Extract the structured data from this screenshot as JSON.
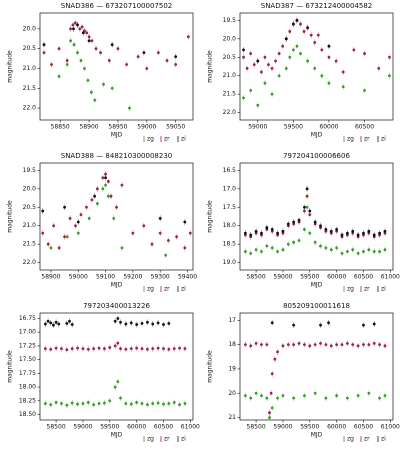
{
  "chart_data": [
    {
      "type": "scatter",
      "title": "SNAD386 — 673207100007502",
      "xlabel": "MJD",
      "ylabel": "magnitude",
      "legend": "below-right",
      "xlim": [
        58815,
        59080
      ],
      "xticks": [
        58850,
        58900,
        58950,
        59000,
        59050
      ],
      "ylim": [
        22.3,
        19.6
      ],
      "yticks": [
        {
          "value": 20,
          "label": "20.0"
        },
        20.5,
        {
          "value": 21,
          "label": "21.0"
        },
        21.5,
        {
          "value": 22,
          "label": "22.0"
        }
      ],
      "series": [
        {
          "name": "zg",
          "color": "#3a9a2a",
          "x": [
            58848,
            58862,
            58868,
            58874,
            58880,
            58886,
            58892,
            58898,
            58904,
            58910,
            58925,
            58940,
            58970
          ],
          "values": [
            21.2,
            20.9,
            20.3,
            20.4,
            20.6,
            20.8,
            21.0,
            21.3,
            21.6,
            21.8,
            21.4,
            21.5,
            22.0
          ]
        },
        {
          "name": "zr",
          "color": "#a3203f",
          "x": [
            58822,
            58835,
            58848,
            58862,
            58868,
            58872,
            58876,
            58880,
            58884,
            58888,
            58892,
            58896,
            58900,
            58905,
            58912,
            58920,
            58935,
            58950,
            58965,
            58985,
            59000,
            59020,
            59035,
            59050,
            59072
          ],
          "values": [
            20.6,
            20.9,
            20.5,
            20.8,
            20.0,
            19.9,
            19.85,
            19.9,
            20.0,
            19.95,
            20.05,
            20.1,
            20.2,
            20.3,
            20.5,
            20.6,
            20.8,
            20.5,
            20.9,
            20.7,
            21.0,
            20.6,
            20.8,
            20.9,
            20.2
          ]
        },
        {
          "name": "zi",
          "color": "#111111",
          "x": [
            58822,
            58873,
            58880,
            58890,
            58900,
            58940,
            58995,
            59050
          ],
          "values": [
            20.4,
            20.0,
            19.9,
            20.1,
            20.3,
            20.4,
            20.6,
            20.7
          ]
        }
      ]
    },
    {
      "type": "scatter",
      "title": "SNAD387 — 673212400004582",
      "xlabel": "MJD",
      "ylabel": "magnitude",
      "legend": "below-right",
      "xlim": [
        58750,
        60900
      ],
      "xticks": [
        59000,
        59500,
        60000,
        60500
      ],
      "ylim": [
        22.2,
        19.3
      ],
      "yticks": [
        19.5,
        {
          "value": 20,
          "label": "20.0"
        },
        20.5,
        {
          "value": 21,
          "label": "21.0"
        },
        21.5,
        {
          "value": 22,
          "label": "22.0"
        }
      ],
      "series": [
        {
          "name": "zg",
          "color": "#3a9a2a",
          "x": [
            58800,
            58900,
            59000,
            59100,
            59200,
            59300,
            59400,
            59450,
            59500,
            59550,
            59600,
            59700,
            59800,
            59900,
            60000,
            60200,
            60500,
            60850
          ],
          "values": [
            21.6,
            21.4,
            21.8,
            21.2,
            21.5,
            21.0,
            20.8,
            20.5,
            20.3,
            20.2,
            20.4,
            20.6,
            20.8,
            21.0,
            21.2,
            21.3,
            21.4,
            21.0
          ]
        },
        {
          "name": "zr",
          "color": "#a3203f",
          "x": [
            58800,
            58850,
            58900,
            58950,
            59000,
            59050,
            59100,
            59150,
            59200,
            59250,
            59300,
            59350,
            59400,
            59450,
            59500,
            59550,
            59600,
            59650,
            59700,
            59750,
            59800,
            59850,
            59900,
            60000,
            60100,
            60200,
            60350,
            60500,
            60700,
            60850
          ],
          "values": [
            20.5,
            20.8,
            20.4,
            20.7,
            20.6,
            20.9,
            20.5,
            20.7,
            20.8,
            20.6,
            20.4,
            20.2,
            20.0,
            19.8,
            19.6,
            19.5,
            19.6,
            19.8,
            19.7,
            19.9,
            20.1,
            19.9,
            20.3,
            20.5,
            20.6,
            20.9,
            20.3,
            20.4,
            20.8,
            20.5
          ]
        },
        {
          "name": "zi",
          "color": "#111111",
          "x": [
            58800,
            59000,
            59400,
            59500,
            59550,
            59700,
            60000
          ],
          "values": [
            20.3,
            20.6,
            20.0,
            19.6,
            19.5,
            19.7,
            20.2
          ]
        }
      ]
    },
    {
      "type": "scatter",
      "title": "SNAD388 — 848210300008230",
      "xlabel": "MJD",
      "ylabel": "magnitude",
      "legend": "below-right",
      "xlim": [
        58860,
        59420
      ],
      "xticks": [
        58900,
        59000,
        59100,
        59200,
        59300,
        59400
      ],
      "ylim": [
        22.2,
        19.3
      ],
      "yticks": [
        19.5,
        {
          "value": 20,
          "label": "20.0"
        },
        20.5,
        {
          "value": 21,
          "label": "21.0"
        },
        21.5,
        {
          "value": 22,
          "label": "22.0"
        }
      ],
      "series": [
        {
          "name": "zg",
          "color": "#3a9a2a",
          "x": [
            58900,
            58960,
            59000,
            59040,
            59070,
            59090,
            59100,
            59110,
            59130,
            59160,
            59320
          ],
          "values": [
            21.6,
            21.3,
            21.2,
            20.8,
            20.4,
            20.0,
            19.9,
            20.2,
            20.8,
            21.6,
            21.8
          ]
        },
        {
          "name": "zr",
          "color": "#a3203f",
          "x": [
            58870,
            58890,
            58910,
            58930,
            58950,
            58970,
            58990,
            59010,
            59030,
            59050,
            59070,
            59090,
            59100,
            59110,
            59120,
            59140,
            59160,
            59200,
            59240,
            59270,
            59300,
            59330,
            59360,
            59390,
            59410
          ],
          "values": [
            21.2,
            21.5,
            21.0,
            21.6,
            21.3,
            20.8,
            21.0,
            20.7,
            20.5,
            20.3,
            20.0,
            19.7,
            19.6,
            19.8,
            20.2,
            20.5,
            19.9,
            21.2,
            21.0,
            21.5,
            21.2,
            21.4,
            21.3,
            21.6,
            21.2
          ]
        },
        {
          "name": "zi",
          "color": "#111111",
          "x": [
            58870,
            58950,
            59000,
            59060,
            59100,
            59300,
            59390
          ],
          "values": [
            20.6,
            20.5,
            20.9,
            20.2,
            19.7,
            20.8,
            20.9
          ]
        }
      ]
    },
    {
      "type": "scatter",
      "title": "797204100006606",
      "xlabel": "MJD",
      "ylabel": "magnitude",
      "legend": "below-right",
      "xlim": [
        58200,
        61050
      ],
      "xticks": [
        58500,
        59000,
        59500,
        60000,
        60500,
        61000
      ],
      "ylim": [
        19.2,
        16.3
      ],
      "yticks": [
        16.5,
        {
          "value": 17,
          "label": "17.0"
        },
        17.5,
        {
          "value": 18,
          "label": "18.0"
        },
        18.5,
        {
          "value": 19,
          "label": "19.0"
        }
      ],
      "series": [
        {
          "name": "zg",
          "color": "#3a9a2a",
          "x": [
            58300,
            58400,
            58500,
            58600,
            58700,
            58800,
            58900,
            59000,
            59100,
            59200,
            59300,
            59400,
            59450,
            59500,
            59600,
            59700,
            59800,
            59900,
            60000,
            60100,
            60200,
            60300,
            60400,
            60500,
            60600,
            60700,
            60800,
            60900
          ],
          "values": [
            18.7,
            18.75,
            18.65,
            18.7,
            18.55,
            18.6,
            18.7,
            18.65,
            18.5,
            18.45,
            18.4,
            18.1,
            17.5,
            18.2,
            18.45,
            18.55,
            18.6,
            18.65,
            18.6,
            18.75,
            18.7,
            18.65,
            18.75,
            18.7,
            18.65,
            18.7,
            18.7,
            18.65
          ]
        },
        {
          "name": "zr",
          "color": "#a3203f",
          "x": [
            58300,
            58400,
            58500,
            58600,
            58700,
            58800,
            58900,
            59000,
            59100,
            59200,
            59300,
            59400,
            59450,
            59500,
            59600,
            59700,
            59800,
            59900,
            60000,
            60100,
            60200,
            60300,
            60400,
            60500,
            60600,
            60700,
            60800,
            60900
          ],
          "values": [
            18.25,
            18.3,
            18.2,
            18.25,
            18.1,
            18.15,
            18.25,
            18.2,
            18.0,
            17.95,
            17.9,
            17.6,
            17.2,
            17.7,
            17.95,
            18.05,
            18.15,
            18.2,
            18.15,
            18.3,
            18.25,
            18.2,
            18.3,
            18.25,
            18.2,
            18.3,
            18.25,
            18.2
          ]
        },
        {
          "name": "zi",
          "color": "#111111",
          "x": [
            58300,
            58400,
            58500,
            58600,
            58700,
            58800,
            58900,
            59000,
            59100,
            59200,
            59300,
            59400,
            59450,
            59500,
            59600,
            59700,
            59800,
            59900,
            60000,
            60100,
            60200,
            60300,
            60400,
            60500,
            60600,
            60700,
            60800,
            60900
          ],
          "values": [
            18.2,
            18.25,
            18.15,
            18.2,
            18.05,
            18.1,
            18.2,
            18.15,
            17.95,
            17.9,
            17.85,
            17.5,
            17.0,
            17.6,
            17.9,
            18.0,
            18.1,
            18.15,
            18.1,
            18.25,
            18.2,
            18.15,
            18.25,
            18.2,
            18.15,
            18.25,
            18.2,
            18.15
          ]
        }
      ]
    },
    {
      "type": "scatter",
      "title": "797203400013226",
      "xlabel": "MJD",
      "ylabel": "magnitude",
      "legend": "below-right",
      "xlim": [
        58200,
        61050
      ],
      "xticks": [
        58500,
        59000,
        59500,
        60000,
        60500,
        61000
      ],
      "ylim": [
        18.6,
        16.65
      ],
      "yticks": [
        16.75,
        {
          "value": 17,
          "label": "17.00"
        },
        17.25,
        {
          "value": 17.5,
          "label": "17.50"
        },
        17.75,
        {
          "value": 18,
          "label": "18.00"
        },
        18.25,
        {
          "value": 18.5,
          "label": "18.50"
        }
      ],
      "series": [
        {
          "name": "zg",
          "color": "#3a9a2a",
          "x": [
            58300,
            58400,
            58500,
            58600,
            58700,
            58800,
            58900,
            59000,
            59100,
            59200,
            59300,
            59400,
            59500,
            59600,
            59650,
            59700,
            59800,
            59900,
            60000,
            60100,
            60200,
            60300,
            60400,
            60500,
            60600,
            60700,
            60800,
            60900
          ],
          "values": [
            18.3,
            18.32,
            18.28,
            18.3,
            18.33,
            18.29,
            18.31,
            18.3,
            18.28,
            18.32,
            18.3,
            18.29,
            18.25,
            18.0,
            17.9,
            18.2,
            18.3,
            18.31,
            18.28,
            18.3,
            18.32,
            18.3,
            18.29,
            18.31,
            18.3,
            18.28,
            18.32,
            18.3
          ]
        },
        {
          "name": "zr",
          "color": "#a3203f",
          "x": [
            58300,
            58400,
            58500,
            58600,
            58700,
            58800,
            58900,
            59000,
            59100,
            59200,
            59300,
            59400,
            59500,
            59600,
            59650,
            59700,
            59800,
            59900,
            60000,
            60100,
            60200,
            60300,
            60400,
            60500,
            60600,
            60700,
            60800,
            60900
          ],
          "values": [
            17.3,
            17.31,
            17.29,
            17.3,
            17.32,
            17.3,
            17.29,
            17.3,
            17.31,
            17.3,
            17.29,
            17.3,
            17.28,
            17.25,
            17.2,
            17.3,
            17.31,
            17.3,
            17.29,
            17.3,
            17.31,
            17.3,
            17.29,
            17.3,
            17.31,
            17.3,
            17.29,
            17.3
          ]
        },
        {
          "name": "zi",
          "color": "#111111",
          "x": [
            58300,
            58350,
            58400,
            58450,
            58500,
            58550,
            58700,
            58750,
            58800,
            59600,
            59650,
            59700,
            59800,
            59900,
            60000,
            60100,
            60200,
            60300,
            60400,
            60500,
            60600
          ],
          "values": [
            16.85,
            16.8,
            16.83,
            16.87,
            16.82,
            16.85,
            16.84,
            16.8,
            16.86,
            16.8,
            16.75,
            16.82,
            16.85,
            16.83,
            16.86,
            16.84,
            16.82,
            16.85,
            16.83,
            16.86,
            16.84
          ]
        }
      ]
    },
    {
      "type": "scatter",
      "title": "805209100011618",
      "xlabel": "MJD",
      "ylabel": "magnitude",
      "legend": "below-right",
      "xlim": [
        58200,
        61050
      ],
      "xticks": [
        58500,
        59000,
        59500,
        60000,
        60500,
        61000
      ],
      "ylim": [
        21.1,
        16.7
      ],
      "yticks": [
        17,
        18,
        19,
        20,
        21
      ],
      "series": [
        {
          "name": "zg",
          "color": "#3a9a2a",
          "x": [
            58300,
            58400,
            58500,
            58600,
            58700,
            58750,
            58800,
            58900,
            59000,
            59200,
            59400,
            59600,
            59800,
            60000,
            60200,
            60400,
            60600,
            60800,
            60900
          ],
          "values": [
            20.1,
            20.2,
            20.0,
            20.1,
            20.2,
            21.0,
            20.6,
            20.2,
            20.1,
            20.2,
            20.1,
            20.0,
            20.2,
            20.1,
            20.2,
            20.1,
            20.0,
            20.2,
            20.1
          ]
        },
        {
          "name": "zr",
          "color": "#a3203f",
          "x": [
            58300,
            58400,
            58500,
            58600,
            58700,
            58750,
            58780,
            58800,
            58850,
            58900,
            59000,
            59100,
            59200,
            59300,
            59400,
            59500,
            59600,
            59700,
            59800,
            59900,
            60000,
            60100,
            60200,
            60300,
            60400,
            60500,
            60600,
            60700,
            60800,
            60900
          ],
          "values": [
            18.0,
            18.05,
            17.95,
            18.0,
            18.0,
            20.8,
            20.0,
            19.2,
            18.6,
            18.3,
            18.05,
            18.0,
            18.0,
            17.95,
            18.0,
            18.05,
            18.0,
            17.95,
            18.0,
            18.05,
            18.0,
            18.0,
            17.95,
            18.0,
            18.05,
            18.0,
            18.0,
            17.95,
            18.0,
            18.05
          ]
        },
        {
          "name": "zi",
          "color": "#111111",
          "x": [
            58800,
            59200,
            59700,
            59850,
            60500,
            60700
          ],
          "values": [
            17.1,
            17.2,
            17.2,
            17.1,
            17.2,
            17.15
          ]
        }
      ]
    }
  ]
}
